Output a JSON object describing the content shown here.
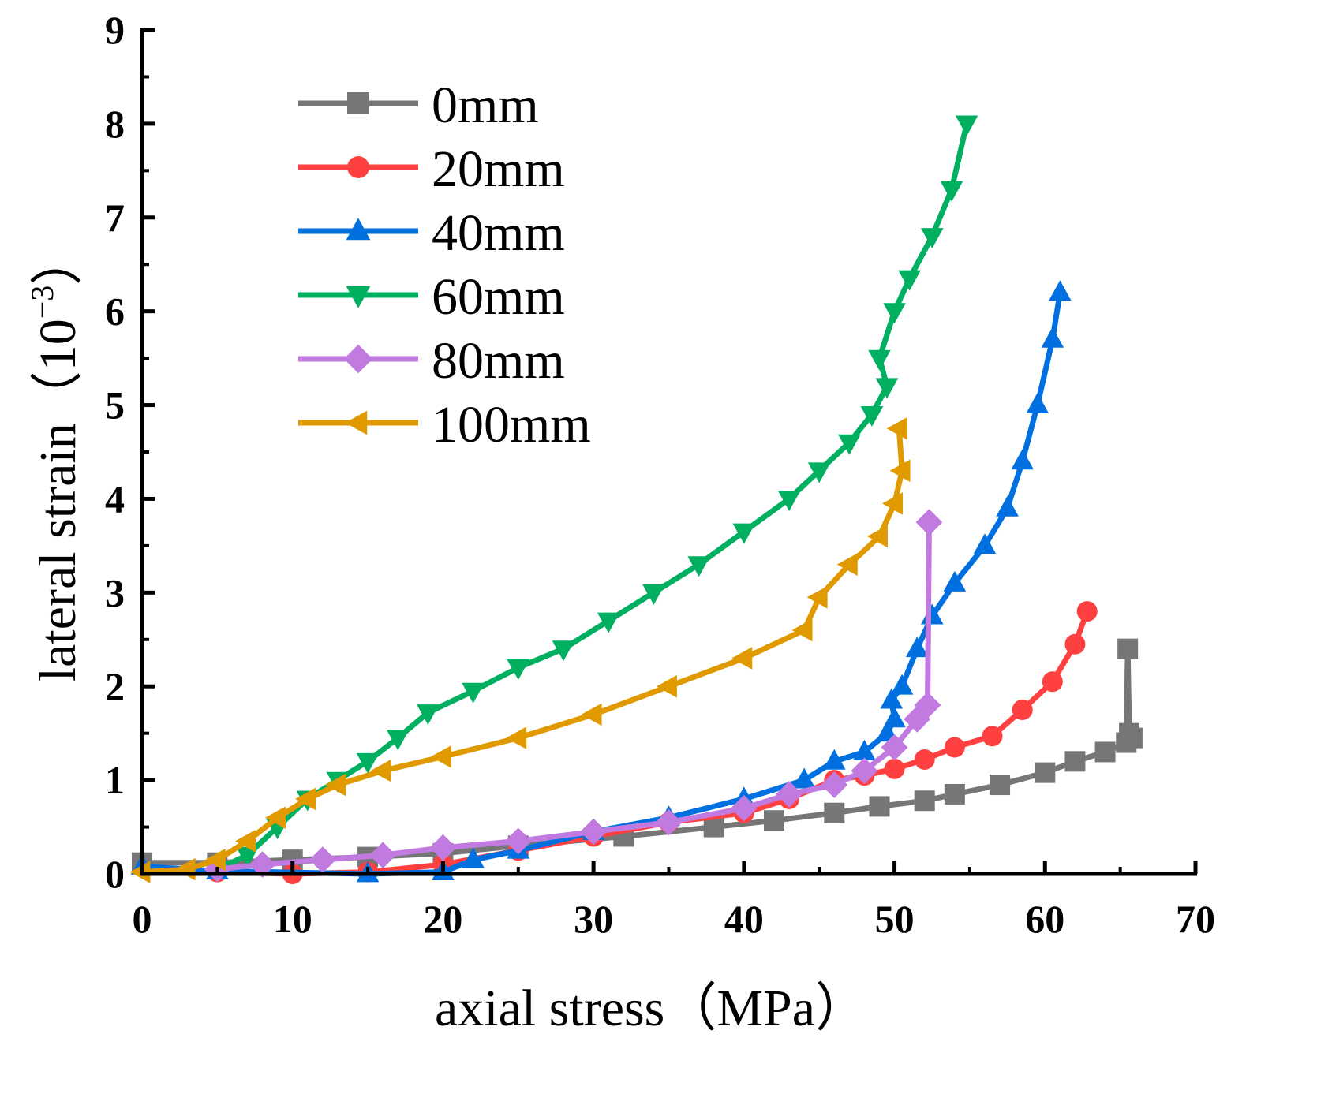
{
  "chart_data": {
    "type": "line",
    "title": "",
    "xlabel": "axial stress（MPa）",
    "ylabel": "lateral strain（10",
    "ylabel_exp": "−3",
    "ylabel_close": "）",
    "xlim": [
      0,
      70
    ],
    "ylim": [
      0,
      9
    ],
    "xticks": [
      "0",
      "10",
      "20",
      "30",
      "40",
      "50",
      "60",
      "70"
    ],
    "yticks": [
      "0",
      "1",
      "2",
      "3",
      "4",
      "5",
      "6",
      "7",
      "8",
      "9"
    ],
    "grid": false,
    "legend_position": "top-left",
    "series": [
      {
        "name": "0mm",
        "color": "#767676",
        "marker": "square",
        "x": [
          0,
          5,
          10,
          15,
          20,
          25,
          32,
          38,
          42,
          46,
          49,
          52,
          54,
          57,
          60,
          62,
          64,
          65.4,
          65.5,
          65.6,
          65.8
        ],
        "y": [
          0.12,
          0.12,
          0.15,
          0.18,
          0.22,
          0.3,
          0.4,
          0.5,
          0.57,
          0.65,
          0.72,
          0.78,
          0.85,
          0.95,
          1.08,
          1.2,
          1.3,
          1.4,
          2.4,
          1.5,
          1.45
        ]
      },
      {
        "name": "20mm",
        "color": "#ff4040",
        "marker": "circle",
        "x": [
          5,
          10,
          15,
          20,
          25,
          30,
          35,
          40,
          43,
          46,
          48,
          50,
          52,
          54,
          56.5,
          58.5,
          60.5,
          62,
          62.8
        ],
        "y": [
          0.02,
          0.0,
          0.02,
          0.1,
          0.25,
          0.4,
          0.55,
          0.65,
          0.8,
          1.0,
          1.05,
          1.12,
          1.22,
          1.35,
          1.47,
          1.75,
          2.05,
          2.45,
          2.8
        ]
      },
      {
        "name": "40mm",
        "color": "#0070e0",
        "marker": "triangle-up",
        "x": [
          0,
          5,
          15,
          20,
          22,
          25,
          30,
          35,
          40,
          44,
          46,
          48,
          49.5,
          50,
          49.8,
          50.5,
          51.5,
          52.5,
          54,
          56,
          57.5,
          58.5,
          59.5,
          60.5,
          61
        ],
        "y": [
          0.08,
          0.03,
          0.0,
          0.02,
          0.15,
          0.25,
          0.45,
          0.6,
          0.8,
          1.0,
          1.2,
          1.3,
          1.5,
          1.65,
          1.85,
          2.0,
          2.4,
          2.75,
          3.1,
          3.5,
          3.9,
          4.4,
          5.0,
          5.7,
          6.2
        ]
      },
      {
        "name": "60mm",
        "color": "#00b060",
        "marker": "triangle-down",
        "x": [
          5,
          7,
          9,
          11,
          13,
          15,
          17,
          19,
          22,
          25,
          28,
          31,
          34,
          37,
          40,
          43,
          45,
          47,
          48.5,
          49.5,
          49,
          50,
          51,
          52.5,
          53.8,
          54.8
        ],
        "y": [
          0.05,
          0.2,
          0.5,
          0.8,
          1.0,
          1.2,
          1.45,
          1.72,
          1.95,
          2.2,
          2.4,
          2.7,
          3.0,
          3.3,
          3.65,
          4.0,
          4.3,
          4.6,
          4.9,
          5.2,
          5.5,
          6.0,
          6.35,
          6.8,
          7.3,
          8.0
        ]
      },
      {
        "name": "80mm",
        "color": "#c07ae0",
        "marker": "diamond",
        "x": [
          5,
          8,
          12,
          16,
          20,
          25,
          30,
          35,
          40,
          43,
          46,
          48,
          50,
          51.5,
          52.2,
          52.3
        ],
        "y": [
          0.05,
          0.1,
          0.15,
          0.2,
          0.28,
          0.35,
          0.45,
          0.55,
          0.7,
          0.85,
          0.95,
          1.1,
          1.35,
          1.65,
          1.8,
          3.75
        ]
      },
      {
        "name": "100mm",
        "color": "#e09a00",
        "marker": "triangle-left",
        "x": [
          0,
          3,
          5,
          7,
          9,
          11,
          13,
          16,
          20,
          25,
          30,
          35,
          40,
          44,
          45,
          47,
          49,
          50,
          50.5,
          50.3
        ],
        "y": [
          0.02,
          0.05,
          0.15,
          0.35,
          0.6,
          0.8,
          0.95,
          1.1,
          1.25,
          1.45,
          1.7,
          2.0,
          2.3,
          2.6,
          2.95,
          3.3,
          3.6,
          3.95,
          4.3,
          4.75
        ]
      }
    ]
  }
}
